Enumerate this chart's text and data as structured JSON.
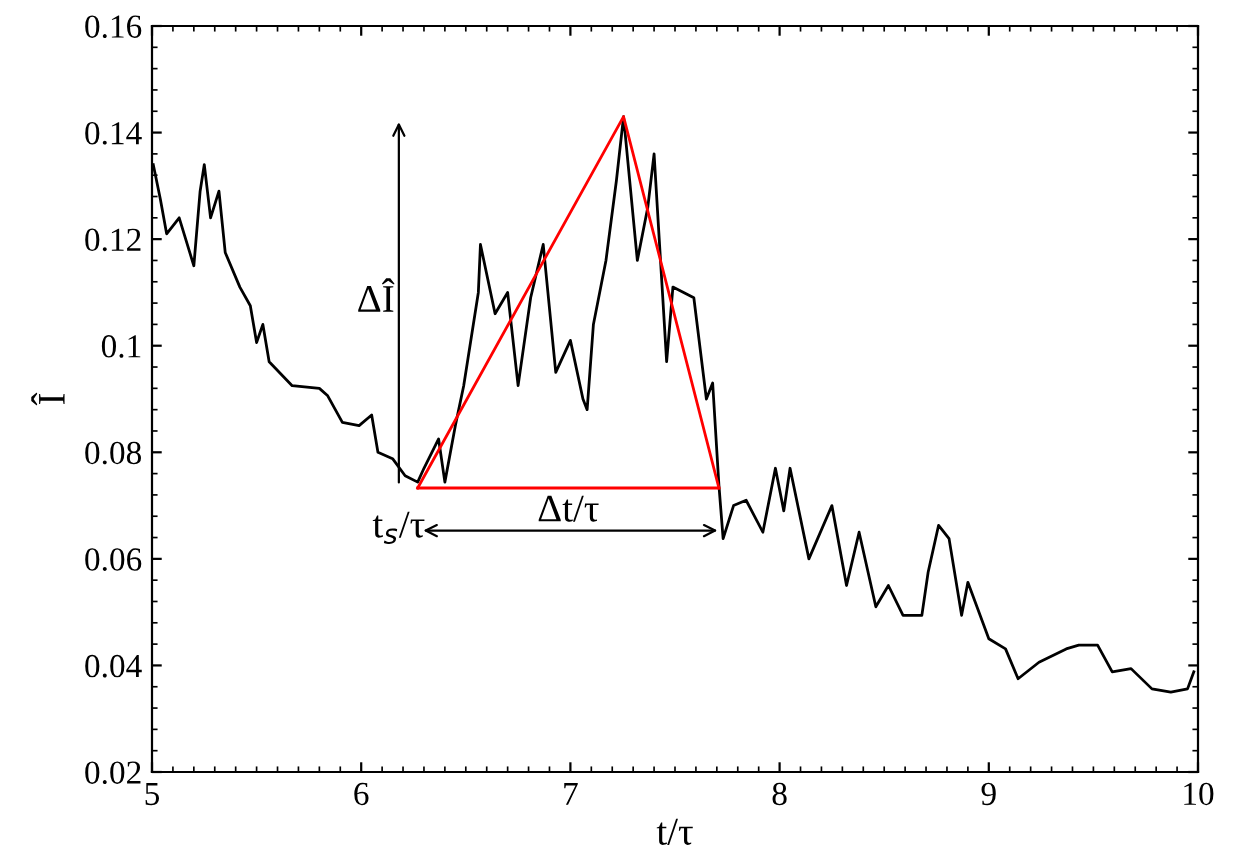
{
  "chart_data": {
    "type": "line",
    "xlabel": "t/τ",
    "ylabel": "Î",
    "xlim": [
      5,
      10
    ],
    "ylim": [
      0.02,
      0.16
    ],
    "xticks": [
      5,
      6,
      7,
      8,
      9,
      10
    ],
    "yticks": [
      0.02,
      0.04,
      0.06,
      0.08,
      0.1,
      0.12,
      0.14,
      0.16
    ],
    "grid": false,
    "legend": false,
    "series": [
      {
        "color": "#000000",
        "x": [
          5.006,
          5.04,
          5.07,
          5.13,
          5.2,
          5.23,
          5.25,
          5.28,
          5.32,
          5.35,
          5.42,
          5.47,
          5.5,
          5.53,
          5.56,
          5.67,
          5.8,
          5.84,
          5.91,
          5.99,
          6.05,
          6.08,
          6.15,
          6.21,
          6.27,
          6.3,
          6.37,
          6.4,
          6.45,
          6.49,
          6.56,
          6.57,
          6.64,
          6.7,
          6.75,
          6.81,
          6.87,
          6.93,
          7.0,
          7.06,
          7.08,
          7.11,
          7.17,
          7.22,
          7.254,
          7.32,
          7.37,
          7.4,
          7.46,
          7.49,
          7.59,
          7.65,
          7.68,
          7.71,
          7.73,
          7.78,
          7.84,
          7.92,
          7.98,
          8.02,
          8.05,
          8.14,
          8.25,
          8.32,
          8.38,
          8.46,
          8.52,
          8.59,
          8.68,
          8.71,
          8.76,
          8.81,
          8.87,
          8.9,
          9.0,
          9.08,
          9.14,
          9.24,
          9.37,
          9.43,
          9.52,
          9.59,
          9.68,
          9.78,
          9.87,
          9.95,
          9.98
        ],
        "values": [
          0.134,
          0.1275,
          0.121,
          0.124,
          0.115,
          0.129,
          0.134,
          0.124,
          0.129,
          0.1175,
          0.111,
          0.1075,
          0.1006,
          0.104,
          0.097,
          0.0925,
          0.092,
          0.0906,
          0.0856,
          0.085,
          0.087,
          0.08,
          0.0788,
          0.0756,
          0.0744,
          0.077,
          0.0825,
          0.0744,
          0.085,
          0.0925,
          0.11,
          0.119,
          0.106,
          0.11,
          0.0925,
          0.109,
          0.119,
          0.095,
          0.101,
          0.09,
          0.088,
          0.104,
          0.116,
          0.131,
          0.143,
          0.116,
          0.126,
          0.136,
          0.097,
          0.111,
          0.109,
          0.09,
          0.093,
          0.0738,
          0.0638,
          0.07,
          0.071,
          0.065,
          0.077,
          0.069,
          0.077,
          0.06,
          0.07,
          0.055,
          0.065,
          0.051,
          0.055,
          0.0494,
          0.0494,
          0.0575,
          0.0663,
          0.0638,
          0.0494,
          0.0556,
          0.045,
          0.0431,
          0.0375,
          0.0406,
          0.0431,
          0.0438,
          0.0438,
          0.0388,
          0.0394,
          0.0356,
          0.035,
          0.0356,
          0.0388
        ]
      },
      {
        "color": "#ff0000",
        "x": [
          6.27,
          7.254,
          7.71
        ],
        "values": [
          0.0733,
          0.143,
          0.0733
        ]
      },
      {
        "color": "#ff0000",
        "x": [
          6.27,
          7.71
        ],
        "values": [
          0.0733,
          0.0733
        ]
      }
    ],
    "annotations": [
      "ΔÎ",
      {
        "text": "t$_{s}$/τ",
        "x": 6.27,
        "y": 0.0733
      },
      "Δt/τ"
    ]
  }
}
